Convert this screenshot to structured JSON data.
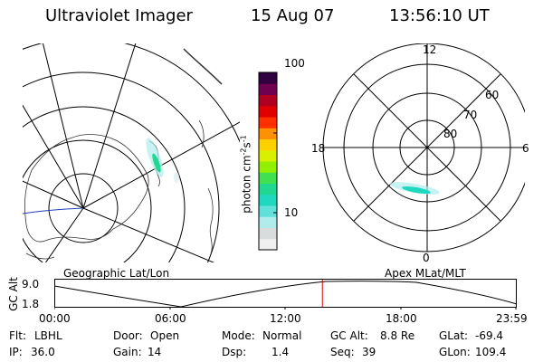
{
  "header": {
    "title": "Ultraviolet Imager",
    "date": "15 Aug 07",
    "time": "13:56:10 UT"
  },
  "colorbar": {
    "unit_prefix": "photon cm",
    "unit_exp1": "-2",
    "unit_mid": "s",
    "unit_exp2": "-1",
    "ticks": [
      "100",
      "10"
    ],
    "colors": [
      "#f0f0f0",
      "#d8dcdc",
      "#b0ecec",
      "#60e0d8",
      "#20d8c0",
      "#20d890",
      "#40e050",
      "#90f000",
      "#d8f000",
      "#ffd000",
      "#ff9000",
      "#ff3000",
      "#e00000",
      "#b00020",
      "#700050",
      "#300040"
    ]
  },
  "geo_panel": {
    "label": "Geographic Lat/Lon"
  },
  "apex_panel": {
    "label": "Apex MLat/MLT",
    "mlt_labels": {
      "top": "12",
      "left": "18",
      "right": "6",
      "bottom": "0"
    },
    "lat_labels": [
      "60",
      "70",
      "80"
    ]
  },
  "altitude_plot": {
    "ylabel": "GC Alt",
    "y_ticks": [
      "9.0",
      "1.8"
    ],
    "x_ticks": [
      "00:00",
      "06:00",
      "12:00",
      "18:00",
      "23:59"
    ],
    "current_hour": 13.94,
    "marker_color": "#e00000"
  },
  "status": {
    "row1": [
      {
        "label": "Flt:",
        "value": "LBHL"
      },
      {
        "label": "Door:",
        "value": "Open"
      },
      {
        "label": "Mode:",
        "value": "Normal"
      },
      {
        "label": "GC Alt:",
        "value": "8.8 Re"
      },
      {
        "label": "GLat:",
        "value": "-69.4"
      }
    ],
    "row2": [
      {
        "label": "IP:",
        "value": "36.0"
      },
      {
        "label": "Gain:",
        "value": "14"
      },
      {
        "label": "Dsp:",
        "value": "1.4"
      },
      {
        "label": "Seq:",
        "value": "39"
      },
      {
        "label": "GLon:",
        "value": "109.4"
      }
    ]
  }
}
